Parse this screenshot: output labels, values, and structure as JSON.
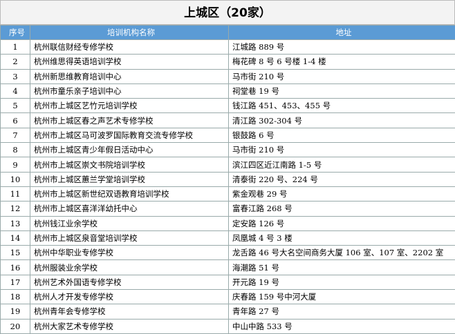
{
  "header": {
    "title": "上城区（20家）"
  },
  "table": {
    "columns": [
      "序号",
      "培训机构名称",
      "地址"
    ],
    "rows": [
      [
        "1",
        "杭州联信财经专修学校",
        "江城路 889 号"
      ],
      [
        "2",
        "杭州维思得英语培训学校",
        "梅花碑 8 号 6 号楼 1-4 楼"
      ],
      [
        "3",
        "杭州新思维教育培训中心",
        "马市街 210 号"
      ],
      [
        "4",
        "杭州市童乐亲子培训中心",
        "祠堂巷 19 号"
      ],
      [
        "5",
        "杭州市上城区艺竹元培训学校",
        "钱江路 451、453、455 号"
      ],
      [
        "6",
        "杭州市上城区春之声艺术专修学校",
        "清江路 302-304 号"
      ],
      [
        "7",
        "杭州市上城区马可波罗国际教育交流专修学校",
        "银鼓路 6 号"
      ],
      [
        "8",
        "杭州市上城区青少年假日活动中心",
        "马市街 210 号"
      ],
      [
        "9",
        "杭州市上城区崇文书院培训学校",
        "滨江四区近江南路 1-5 号"
      ],
      [
        "10",
        "杭州市上城区蕙兰学堂培训学校",
        "清泰街 220 号、224 号"
      ],
      [
        "11",
        "杭州市上城区新世纪双语教育培训学校",
        "紫金观巷 29 号"
      ],
      [
        "12",
        "杭州市上城区喜洋洋幼托中心",
        "富春江路 268 号"
      ],
      [
        "13",
        "杭州钱江业余学校",
        "定安路 126 号"
      ],
      [
        "14",
        "杭州市上城区泉音堂培训学校",
        "凤凰城 4 号 3 楼"
      ],
      [
        "15",
        "杭州中华职业专修学校",
        "龙舌路 46 号大名空间商务大厦 106 室、107 室、2202 室"
      ],
      [
        "16",
        "杭州服装业余学校",
        "海潮路 51 号"
      ],
      [
        "17",
        "杭州艺术外国语专修学校",
        "开元路 19 号"
      ],
      [
        "18",
        "杭州人才开发专修学校",
        "庆春路 159 号中河大厦"
      ],
      [
        "19",
        "杭州青年会专修学校",
        "青年路 27 号"
      ],
      [
        "20",
        "杭州大家艺术专修学校",
        "中山中路 533 号"
      ]
    ]
  }
}
